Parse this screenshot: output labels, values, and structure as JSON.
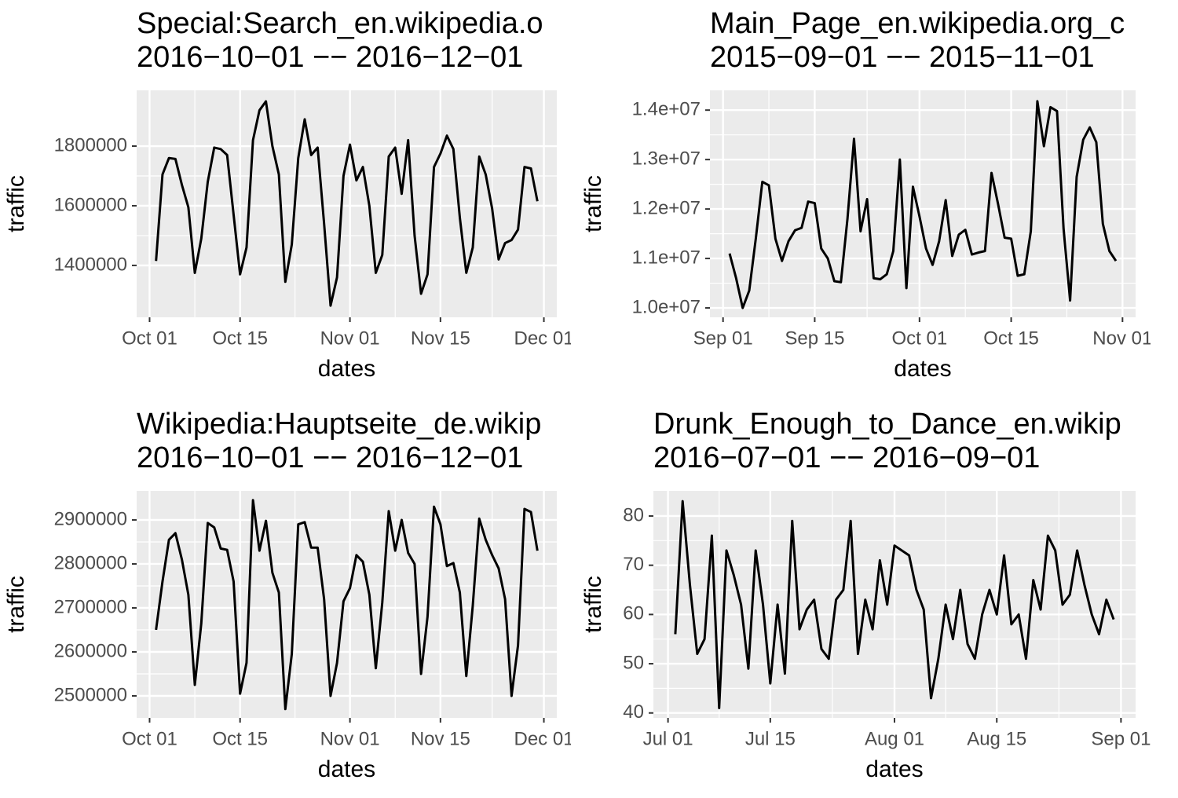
{
  "chart_data": [
    {
      "type": "line",
      "title": "Special:Search_en.wikipedia.o",
      "subtitle": "2016−10−01 −− 2016−12−01",
      "x_label": "dates",
      "y_label": "traffic",
      "color": "#000000",
      "grid": true,
      "x": [
        "2016-10-02",
        "2016-10-03",
        "2016-10-04",
        "2016-10-05",
        "2016-10-06",
        "2016-10-07",
        "2016-10-08",
        "2016-10-09",
        "2016-10-10",
        "2016-10-11",
        "2016-10-12",
        "2016-10-13",
        "2016-10-14",
        "2016-10-15",
        "2016-10-16",
        "2016-10-17",
        "2016-10-18",
        "2016-10-19",
        "2016-10-20",
        "2016-10-21",
        "2016-10-22",
        "2016-10-23",
        "2016-10-24",
        "2016-10-25",
        "2016-10-26",
        "2016-10-27",
        "2016-10-28",
        "2016-10-29",
        "2016-10-30",
        "2016-10-31",
        "2016-11-01",
        "2016-11-02",
        "2016-11-03",
        "2016-11-04",
        "2016-11-05",
        "2016-11-06",
        "2016-11-07",
        "2016-11-08",
        "2016-11-09",
        "2016-11-10",
        "2016-11-11",
        "2016-11-12",
        "2016-11-13",
        "2016-11-14",
        "2016-11-15",
        "2016-11-16",
        "2016-11-17",
        "2016-11-18",
        "2016-11-19",
        "2016-11-20",
        "2016-11-21",
        "2016-11-22",
        "2016-11-23",
        "2016-11-24",
        "2016-11-25",
        "2016-11-26",
        "2016-11-27",
        "2016-11-28",
        "2016-11-29",
        "2016-11-30"
      ],
      "values": [
        1415000,
        1705000,
        1760000,
        1757000,
        1670000,
        1595000,
        1375000,
        1490000,
        1680000,
        1795000,
        1790000,
        1770000,
        1570000,
        1370000,
        1460000,
        1820000,
        1920000,
        1950000,
        1800000,
        1705000,
        1345000,
        1470000,
        1760000,
        1890000,
        1770000,
        1795000,
        1540000,
        1265000,
        1360000,
        1700000,
        1805000,
        1685000,
        1730000,
        1600000,
        1375000,
        1435000,
        1765000,
        1795000,
        1640000,
        1820000,
        1500000,
        1305000,
        1370000,
        1730000,
        1775000,
        1835000,
        1790000,
        1560000,
        1375000,
        1460000,
        1765000,
        1705000,
        1590000,
        1420000,
        1475000,
        1485000,
        1520000,
        1730000,
        1725000,
        1615000
      ],
      "xlim": [
        "2016-09-29",
        "2016-12-03"
      ],
      "ylim": [
        1226000,
        1987000
      ],
      "xticks": [
        {
          "value": "2016-10-01",
          "label": "Oct 01"
        },
        {
          "value": "2016-10-15",
          "label": "Oct 15"
        },
        {
          "value": "2016-11-01",
          "label": "Nov 01"
        },
        {
          "value": "2016-11-15",
          "label": "Nov 15"
        },
        {
          "value": "2016-12-01",
          "label": "Dec 01"
        }
      ],
      "yticks": [
        1400000,
        1600000,
        1800000
      ]
    },
    {
      "type": "line",
      "title": "Main_Page_en.wikipedia.org_c",
      "subtitle": "2015−09−01 −− 2015−11−01",
      "x_label": "dates",
      "y_label": "traffic",
      "color": "#000000",
      "grid": true,
      "x": [
        "2015-09-02",
        "2015-09-03",
        "2015-09-04",
        "2015-09-05",
        "2015-09-06",
        "2015-09-07",
        "2015-09-08",
        "2015-09-09",
        "2015-09-10",
        "2015-09-11",
        "2015-09-12",
        "2015-09-13",
        "2015-09-14",
        "2015-09-15",
        "2015-09-16",
        "2015-09-17",
        "2015-09-18",
        "2015-09-19",
        "2015-09-20",
        "2015-09-21",
        "2015-09-22",
        "2015-09-23",
        "2015-09-24",
        "2015-09-25",
        "2015-09-26",
        "2015-09-27",
        "2015-09-28",
        "2015-09-29",
        "2015-09-30",
        "2015-10-01",
        "2015-10-02",
        "2015-10-03",
        "2015-10-04",
        "2015-10-05",
        "2015-10-06",
        "2015-10-07",
        "2015-10-08",
        "2015-10-09",
        "2015-10-10",
        "2015-10-11",
        "2015-10-12",
        "2015-10-13",
        "2015-10-14",
        "2015-10-15",
        "2015-10-16",
        "2015-10-17",
        "2015-10-18",
        "2015-10-19",
        "2015-10-20",
        "2015-10-21",
        "2015-10-22",
        "2015-10-23",
        "2015-10-24",
        "2015-10-25",
        "2015-10-26",
        "2015-10-27",
        "2015-10-28",
        "2015-10-29",
        "2015-10-30",
        "2015-10-31"
      ],
      "values": [
        11100000,
        10600000,
        10000000,
        10350000,
        11400000,
        12550000,
        12480000,
        11400000,
        10950000,
        11350000,
        11570000,
        11620000,
        12150000,
        12120000,
        11200000,
        11000000,
        10540000,
        10520000,
        11800000,
        13420000,
        11550000,
        12200000,
        10600000,
        10580000,
        10680000,
        11150000,
        13000000,
        10400000,
        12450000,
        11850000,
        11200000,
        10870000,
        11350000,
        12180000,
        11050000,
        11480000,
        11580000,
        11080000,
        11120000,
        11150000,
        12730000,
        12100000,
        11420000,
        11400000,
        10650000,
        10680000,
        11550000,
        14180000,
        13270000,
        14060000,
        13980000,
        11600000,
        10150000,
        12650000,
        13400000,
        13650000,
        13350000,
        11700000,
        11150000,
        10950000
      ],
      "xlim": [
        "2015-08-30",
        "2015-11-03"
      ],
      "ylim": [
        9810000,
        14400000
      ],
      "xticks": [
        {
          "value": "2015-09-01",
          "label": "Sep 01"
        },
        {
          "value": "2015-09-15",
          "label": "Sep 15"
        },
        {
          "value": "2015-10-01",
          "label": "Oct 01"
        },
        {
          "value": "2015-10-15",
          "label": "Oct 15"
        },
        {
          "value": "2015-11-01",
          "label": "Nov 01"
        }
      ],
      "yticks": [
        {
          "value": 10000000,
          "label": "1.0e+07"
        },
        {
          "value": 11000000,
          "label": "1.1e+07"
        },
        {
          "value": 12000000,
          "label": "1.2e+07"
        },
        {
          "value": 13000000,
          "label": "1.3e+07"
        },
        {
          "value": 14000000,
          "label": "1.4e+07"
        }
      ]
    },
    {
      "type": "line",
      "title": "Wikipedia:Hauptseite_de.wikip",
      "subtitle": "2016−10−01 −− 2016−12−01",
      "x_label": "dates",
      "y_label": "traffic",
      "color": "#000000",
      "grid": true,
      "x": [
        "2016-10-02",
        "2016-10-03",
        "2016-10-04",
        "2016-10-05",
        "2016-10-06",
        "2016-10-07",
        "2016-10-08",
        "2016-10-09",
        "2016-10-10",
        "2016-10-11",
        "2016-10-12",
        "2016-10-13",
        "2016-10-14",
        "2016-10-15",
        "2016-10-16",
        "2016-10-17",
        "2016-10-18",
        "2016-10-19",
        "2016-10-20",
        "2016-10-21",
        "2016-10-22",
        "2016-10-23",
        "2016-10-24",
        "2016-10-25",
        "2016-10-26",
        "2016-10-27",
        "2016-10-28",
        "2016-10-29",
        "2016-10-30",
        "2016-10-31",
        "2016-11-01",
        "2016-11-02",
        "2016-11-03",
        "2016-11-04",
        "2016-11-05",
        "2016-11-06",
        "2016-11-07",
        "2016-11-08",
        "2016-11-09",
        "2016-11-10",
        "2016-11-11",
        "2016-11-12",
        "2016-11-13",
        "2016-11-14",
        "2016-11-15",
        "2016-11-16",
        "2016-11-17",
        "2016-11-18",
        "2016-11-19",
        "2016-11-20",
        "2016-11-21",
        "2016-11-22",
        "2016-11-23",
        "2016-11-24",
        "2016-11-25",
        "2016-11-26",
        "2016-11-27",
        "2016-11-28",
        "2016-11-29",
        "2016-11-30"
      ],
      "values": [
        2650000,
        2760000,
        2855000,
        2870000,
        2810000,
        2730000,
        2525000,
        2665000,
        2893000,
        2883000,
        2835000,
        2832000,
        2760000,
        2505000,
        2575000,
        2945000,
        2830000,
        2898000,
        2780000,
        2735000,
        2470000,
        2595000,
        2890000,
        2895000,
        2837000,
        2837000,
        2720000,
        2500000,
        2575000,
        2715000,
        2745000,
        2820000,
        2805000,
        2730000,
        2563000,
        2712000,
        2920000,
        2830000,
        2900000,
        2825000,
        2800000,
        2550000,
        2680000,
        2930000,
        2890000,
        2795000,
        2802000,
        2735000,
        2545000,
        2705000,
        2903000,
        2855000,
        2820000,
        2790000,
        2720000,
        2500000,
        2615000,
        2925000,
        2918000,
        2830000
      ],
      "xlim": [
        "2016-09-29",
        "2016-12-03"
      ],
      "ylim": [
        2450000,
        2966000
      ],
      "xticks": [
        {
          "value": "2016-10-01",
          "label": "Oct 01"
        },
        {
          "value": "2016-10-15",
          "label": "Oct 15"
        },
        {
          "value": "2016-11-01",
          "label": "Nov 01"
        },
        {
          "value": "2016-11-15",
          "label": "Nov 15"
        },
        {
          "value": "2016-12-01",
          "label": "Dec 01"
        }
      ],
      "yticks": [
        2500000,
        2600000,
        2700000,
        2800000,
        2900000
      ]
    },
    {
      "type": "line",
      "title": "Drunk_Enough_to_Dance_en.wikip",
      "subtitle": "2016−07−01 −− 2016−09−01",
      "x_label": "dates",
      "y_label": "traffic",
      "color": "#000000",
      "grid": true,
      "x": [
        "2016-07-02",
        "2016-07-03",
        "2016-07-04",
        "2016-07-05",
        "2016-07-06",
        "2016-07-07",
        "2016-07-08",
        "2016-07-09",
        "2016-07-10",
        "2016-07-11",
        "2016-07-12",
        "2016-07-13",
        "2016-07-14",
        "2016-07-15",
        "2016-07-16",
        "2016-07-17",
        "2016-07-18",
        "2016-07-19",
        "2016-07-20",
        "2016-07-21",
        "2016-07-22",
        "2016-07-23",
        "2016-07-24",
        "2016-07-25",
        "2016-07-26",
        "2016-07-27",
        "2016-07-28",
        "2016-07-29",
        "2016-07-30",
        "2016-07-31",
        "2016-08-01",
        "2016-08-02",
        "2016-08-03",
        "2016-08-04",
        "2016-08-05",
        "2016-08-06",
        "2016-08-07",
        "2016-08-08",
        "2016-08-09",
        "2016-08-10",
        "2016-08-11",
        "2016-08-12",
        "2016-08-13",
        "2016-08-14",
        "2016-08-15",
        "2016-08-16",
        "2016-08-17",
        "2016-08-18",
        "2016-08-19",
        "2016-08-20",
        "2016-08-21",
        "2016-08-22",
        "2016-08-23",
        "2016-08-24",
        "2016-08-25",
        "2016-08-26",
        "2016-08-27",
        "2016-08-28",
        "2016-08-29",
        "2016-08-30",
        "2016-08-31"
      ],
      "values": [
        56,
        83,
        66,
        52,
        55,
        76,
        41,
        73,
        68,
        62,
        49,
        73,
        62,
        46,
        62,
        48,
        79,
        57,
        61,
        63,
        53,
        51,
        63,
        65,
        79,
        52,
        63,
        57,
        71,
        62,
        74,
        73,
        72,
        65,
        61,
        43,
        51,
        62,
        55,
        65,
        54,
        51,
        60,
        65,
        60,
        72,
        58,
        60,
        51,
        67,
        61,
        76,
        73,
        62,
        64,
        73,
        66,
        60,
        56,
        63,
        59
      ],
      "xlim": [
        "2016-06-29",
        "2016-09-03"
      ],
      "ylim": [
        39,
        85.1
      ],
      "xticks": [
        {
          "value": "2016-07-01",
          "label": "Jul 01"
        },
        {
          "value": "2016-07-15",
          "label": "Jul 15"
        },
        {
          "value": "2016-08-01",
          "label": "Aug 01"
        },
        {
          "value": "2016-08-15",
          "label": "Aug 15"
        },
        {
          "value": "2016-09-01",
          "label": "Sep 01"
        }
      ],
      "yticks": [
        40,
        50,
        60,
        70,
        80
      ]
    }
  ]
}
